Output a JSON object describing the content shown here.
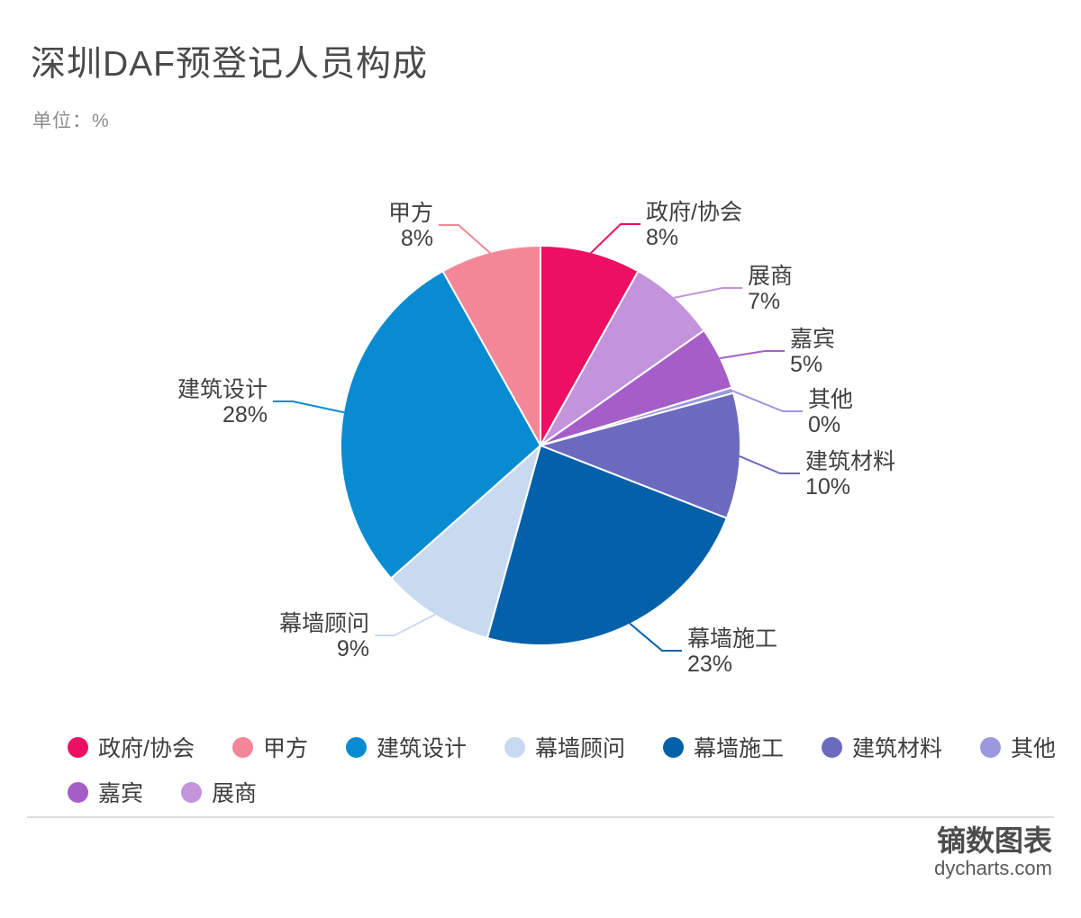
{
  "header": {
    "title": "深圳DAF预登记人员构成",
    "unit_label": "单位：%"
  },
  "chart_data": {
    "type": "pie",
    "title": "深圳DAF预登记人员构成",
    "unit": "%",
    "direction": "clockwise",
    "start_angle": "top",
    "legend_position": "bottom",
    "slices": [
      {
        "name": "政府/协会",
        "value": 8,
        "display": "8%",
        "color": "#EC0F63"
      },
      {
        "name": "展商",
        "value": 7,
        "display": "7%",
        "color": "#C393DB"
      },
      {
        "name": "嘉宾",
        "value": 5,
        "display": "5%",
        "color": "#A55EC7"
      },
      {
        "name": "其他",
        "value": 0,
        "display": "0%",
        "sweep": 0.45,
        "color": "#9C98DE"
      },
      {
        "name": "建筑材料",
        "value": 10,
        "display": "10%",
        "color": "#6C6ABF"
      },
      {
        "name": "幕墙施工",
        "value": 23,
        "display": "23%",
        "color": "#0361A9"
      },
      {
        "name": "幕墙顾问",
        "value": 9,
        "display": "9%",
        "color": "#C8DAF0"
      },
      {
        "name": "建筑设计",
        "value": 28,
        "display": "28%",
        "color": "#098BD2"
      },
      {
        "name": "甲方",
        "value": 8,
        "display": "8%",
        "color": "#F38797"
      }
    ]
  },
  "legend": {
    "order": [
      "政府/协会",
      "甲方",
      "建筑设计",
      "幕墙顾问",
      "幕墙施工",
      "建筑材料",
      "其他",
      "嘉宾",
      "展商"
    ]
  },
  "footer": {
    "brand": "镝数图表",
    "site": "dycharts.com"
  }
}
